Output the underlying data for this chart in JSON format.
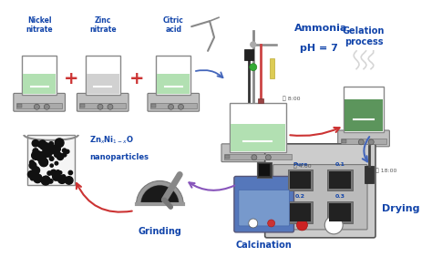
{
  "background_color": "#ffffff",
  "figure_width": 4.74,
  "figure_height": 2.82,
  "dpi": 100,
  "arrow_red": "#cc3333",
  "arrow_blue": "#4466bb",
  "arrow_purple": "#8855bb",
  "label_blue": "#1144aa",
  "timer_label_1": "8:00",
  "timer_label_2": "4:00",
  "timer_label_3": "18:00",
  "drying_labels": [
    "Pure",
    "0.1",
    "0.2",
    "0.3"
  ],
  "beaker_green_light": "#aaddaa",
  "beaker_green_dark": "#4a8a4a",
  "beaker_gray": "#cccccc",
  "hot_plate_color": "#aaaaaa",
  "oven_color": "#666666",
  "oven_bg": "#dddddd"
}
